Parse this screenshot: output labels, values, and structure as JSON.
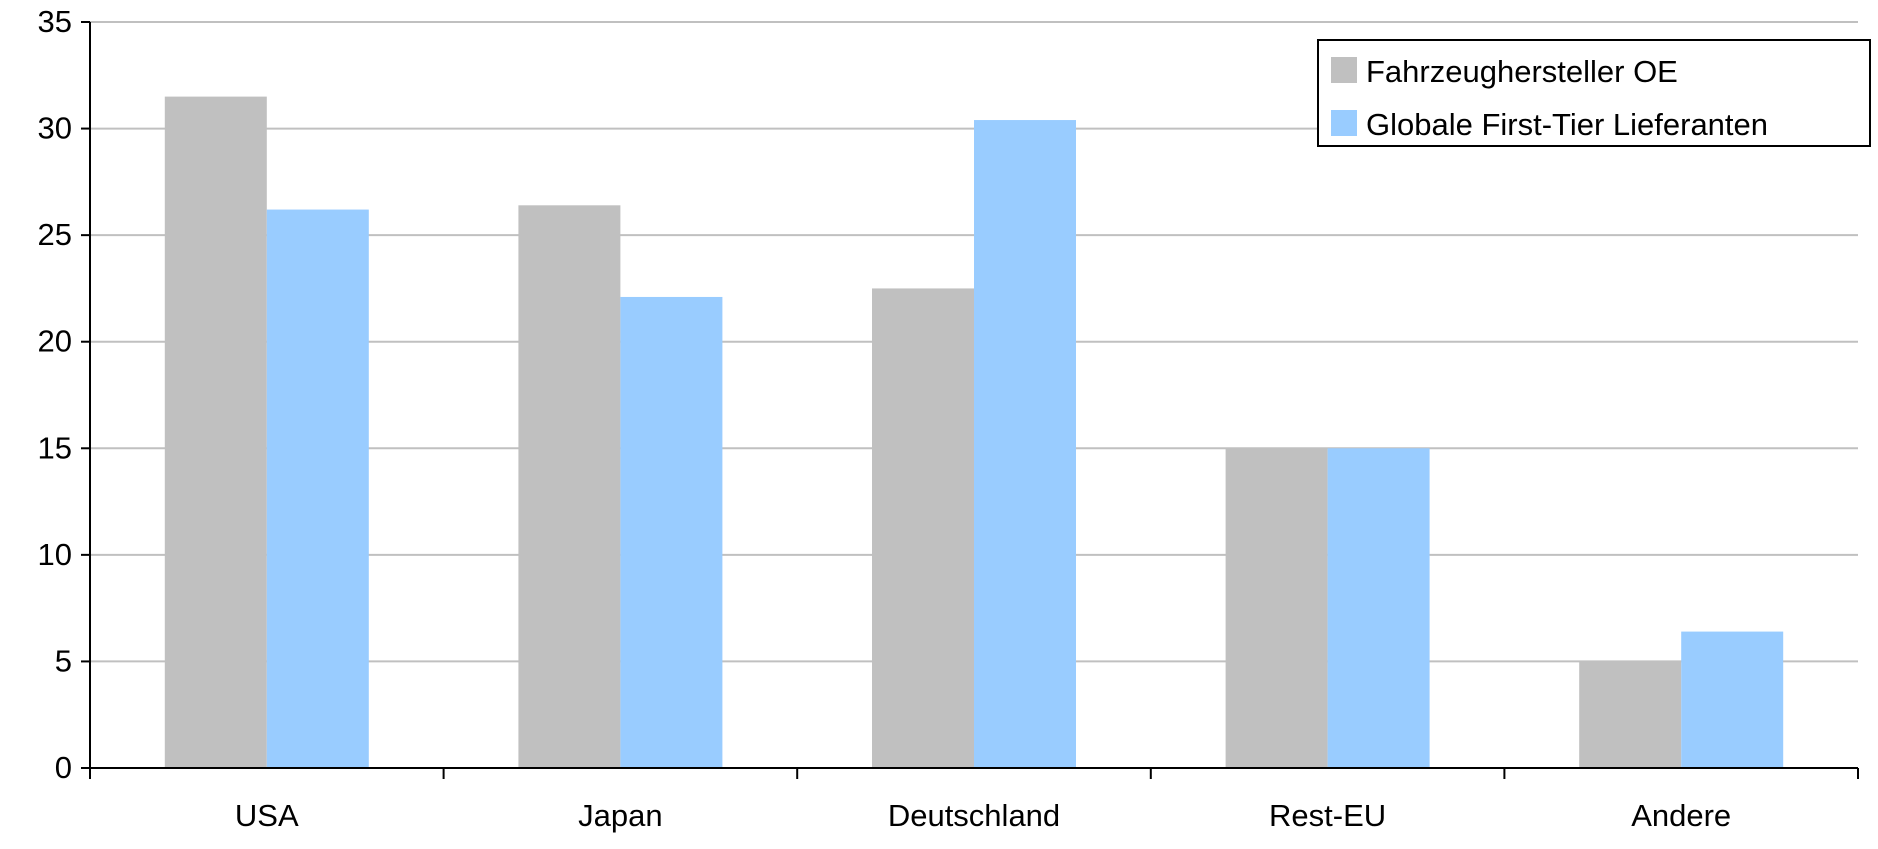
{
  "chart_data": {
    "type": "bar",
    "title": "",
    "xlabel": "",
    "ylabel": "",
    "categories": [
      "USA",
      "Japan",
      "Deutschland",
      "Rest-EU",
      "Andere"
    ],
    "series": [
      {
        "name": "Fahrzeughersteller OE",
        "color": "#c0c0c0",
        "values": [
          31.5,
          26.4,
          22.5,
          15.0,
          5.0
        ]
      },
      {
        "name": "Globale First-Tier Lieferanten",
        "color": "#99ccff",
        "values": [
          26.2,
          22.1,
          30.4,
          15.0,
          6.4
        ]
      }
    ],
    "ylim": [
      0,
      35
    ],
    "yticks": [
      0,
      5,
      10,
      15,
      20,
      25,
      30,
      35
    ],
    "grid": true,
    "legend_position": "top-right"
  }
}
